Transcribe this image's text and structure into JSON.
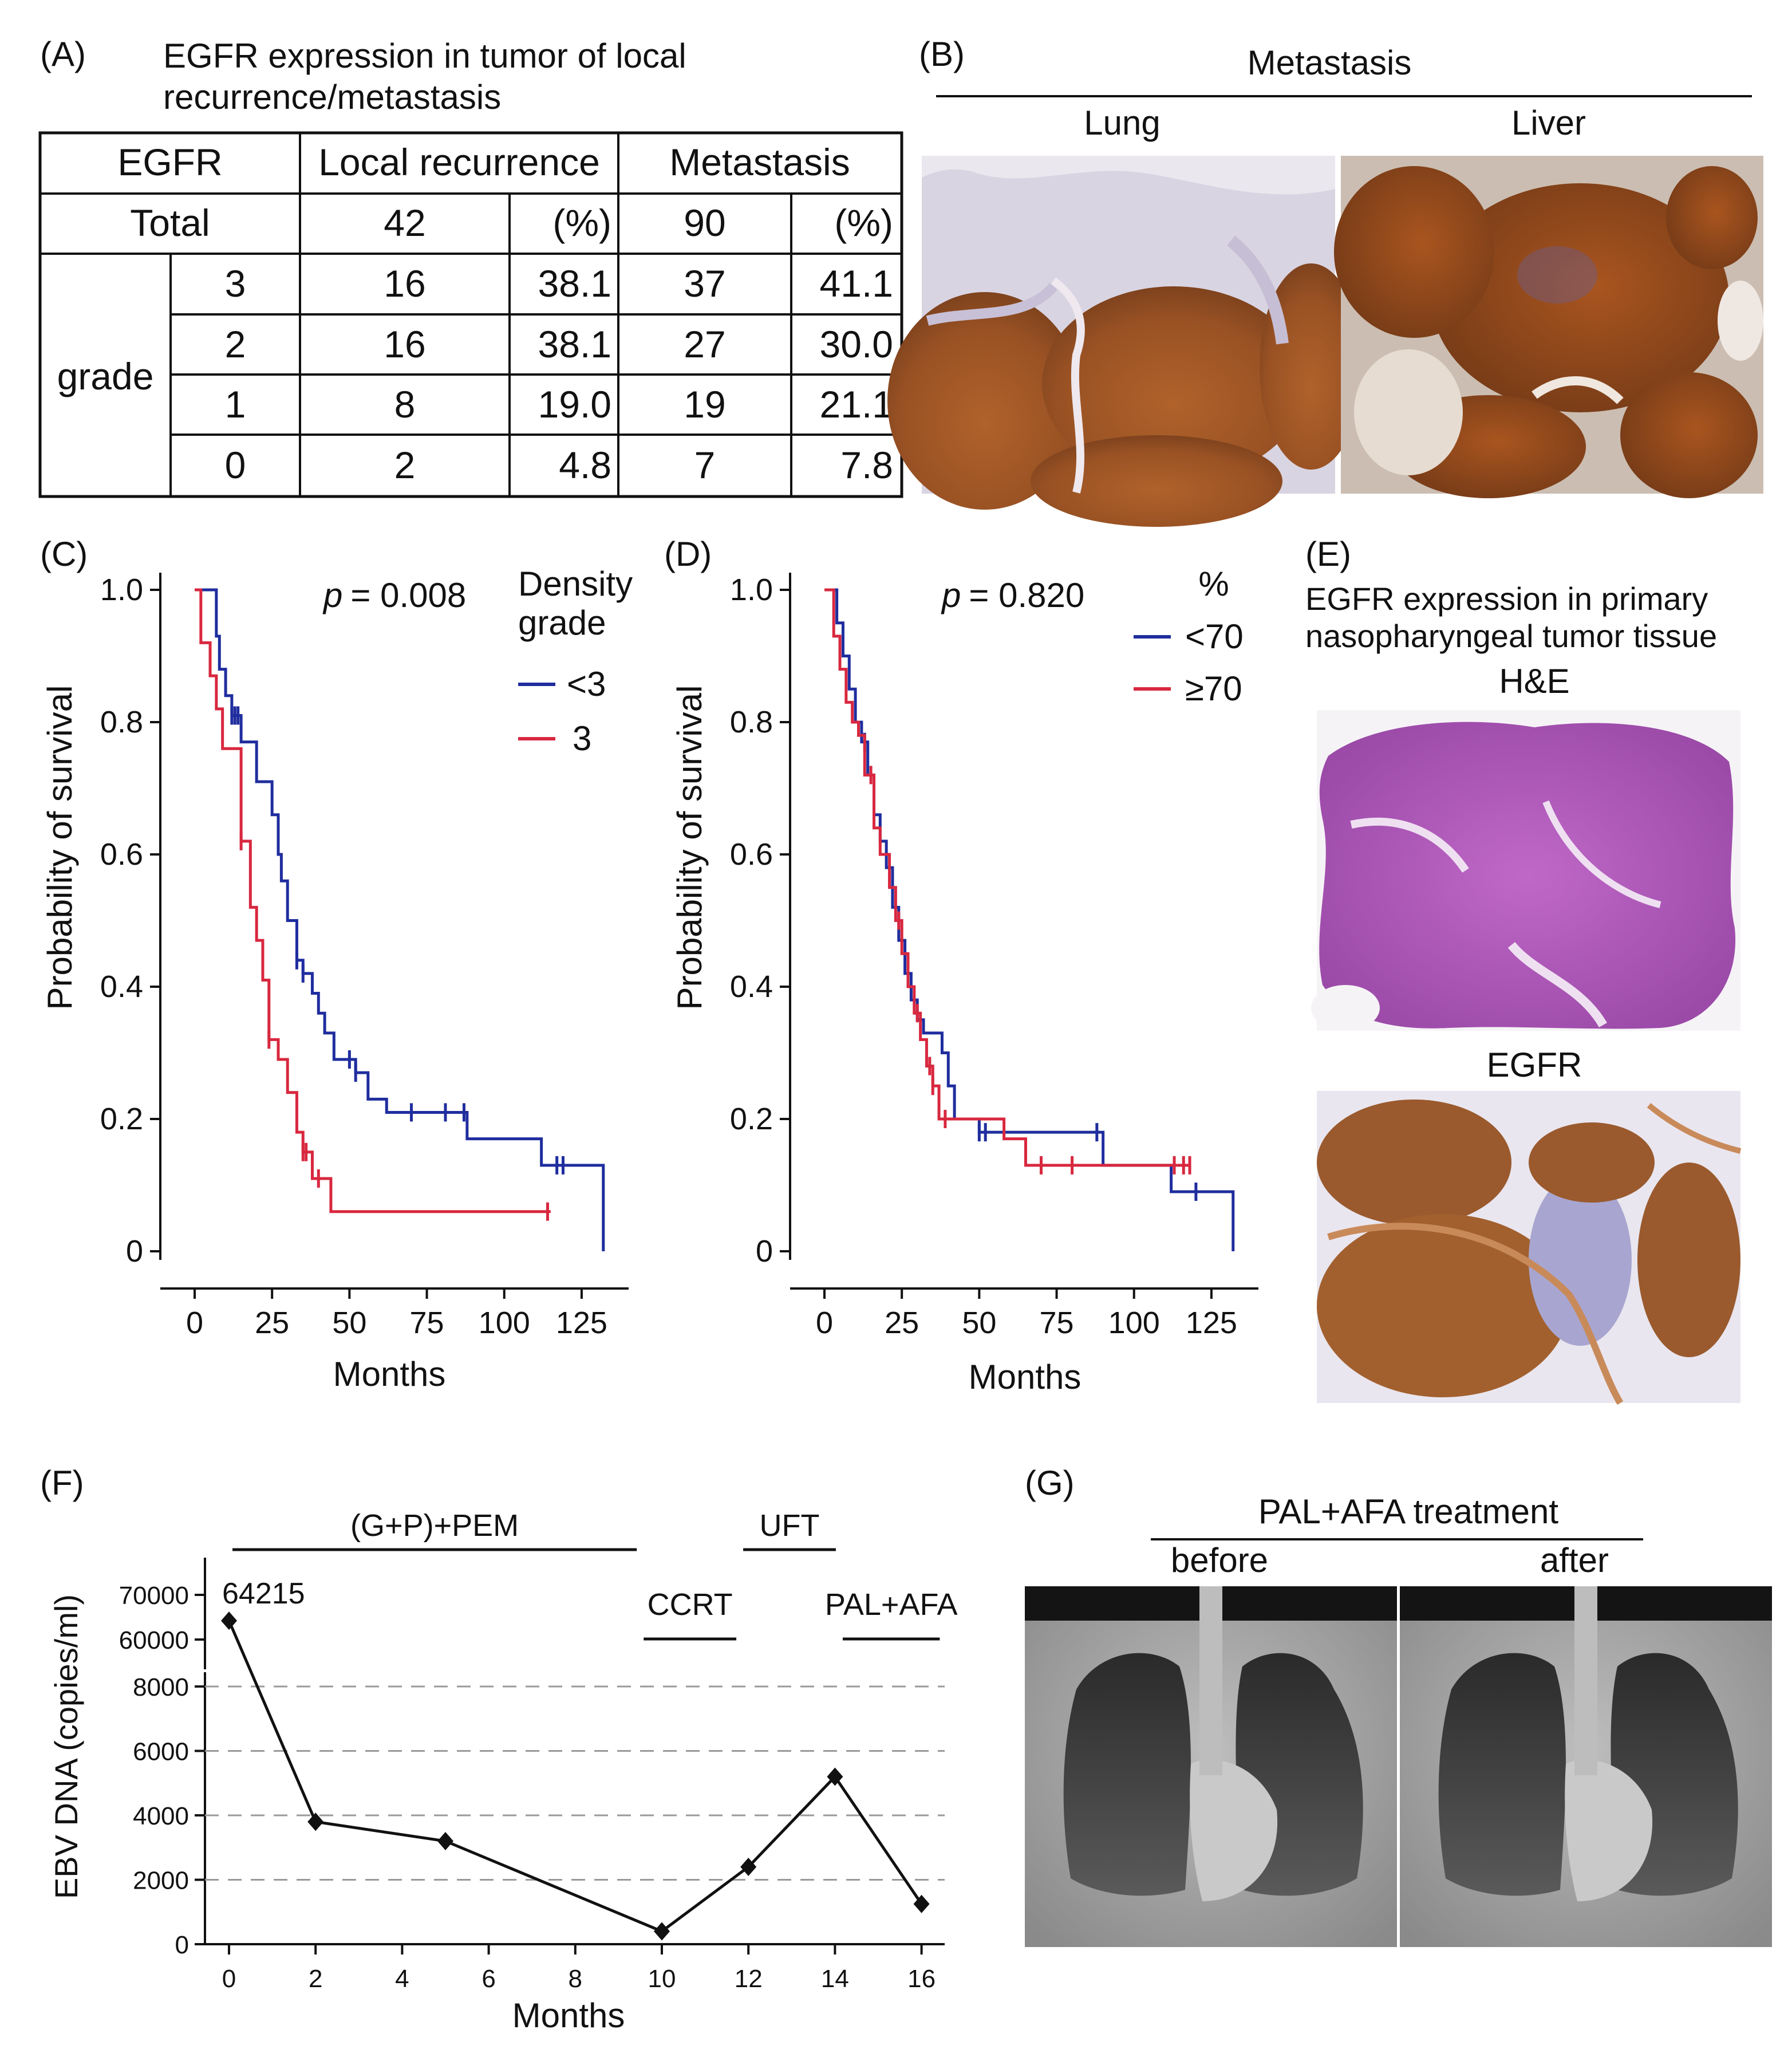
{
  "panels": {
    "a": "(A)",
    "b": "(B)",
    "c": "(C)",
    "d": "(D)",
    "e": "(E)",
    "f": "(F)",
    "g": "(G)"
  },
  "chart_data": [
    {
      "type": "table",
      "title_line1": "EGFR expression in tumor of local",
      "title_line2": "recurrence/metastasis",
      "header": [
        "EGFR",
        "Local recurrence",
        "Metastasis"
      ],
      "total_row": [
        "Total",
        "42",
        "(%)",
        "90",
        "(%)"
      ],
      "row_group_label": "grade",
      "rows": [
        {
          "grade": "3",
          "lr_n": "16",
          "lr_pct": "38.1",
          "met_n": "37",
          "met_pct": "41.1"
        },
        {
          "grade": "2",
          "lr_n": "16",
          "lr_pct": "38.1",
          "met_n": "27",
          "met_pct": "30.0"
        },
        {
          "grade": "1",
          "lr_n": "8",
          "lr_pct": "19.0",
          "met_n": "19",
          "met_pct": "21.1"
        },
        {
          "grade": "0",
          "lr_n": "2",
          "lr_pct": "4.8",
          "met_n": "7",
          "met_pct": "7.8"
        }
      ]
    },
    {
      "type": "line",
      "panel": "C",
      "xlabel": "Months",
      "ylabel": "Probability of survival",
      "xlim": [
        0,
        135
      ],
      "ylim": [
        0,
        1.0
      ],
      "xticks": [
        "0",
        "25",
        "50",
        "75",
        "100",
        "125"
      ],
      "yticks": [
        "0",
        "0.2",
        "0.4",
        "0.6",
        "0.8",
        "1.0"
      ],
      "pvalue": "= 0.008",
      "legend_title_1": "Density",
      "legend_title_2": "grade",
      "series": [
        {
          "name": "<3",
          "color": "#1f2d9e",
          "x": [
            0,
            6,
            7,
            8,
            10,
            12,
            15,
            20,
            25,
            27,
            28,
            30,
            33,
            35,
            38,
            40,
            42,
            45,
            52,
            56,
            62,
            88,
            112,
            117,
            130,
            132
          ],
          "y": [
            1.0,
            1.0,
            0.93,
            0.88,
            0.84,
            0.81,
            0.77,
            0.71,
            0.66,
            0.6,
            0.56,
            0.5,
            0.44,
            0.42,
            0.39,
            0.36,
            0.33,
            0.29,
            0.27,
            0.23,
            0.21,
            0.17,
            0.13,
            0.13,
            0.13,
            0.0
          ],
          "censored_x": [
            12,
            13,
            14,
            33,
            35,
            50,
            52,
            70,
            81,
            87,
            117,
            119
          ]
        },
        {
          "name": "3",
          "color": "#d8283f",
          "x": [
            0,
            2,
            5,
            7,
            9,
            12,
            15,
            18,
            20,
            22,
            24,
            27,
            30,
            33,
            35,
            38,
            42,
            44,
            110,
            115
          ],
          "y": [
            1.0,
            0.92,
            0.87,
            0.82,
            0.76,
            0.76,
            0.62,
            0.52,
            0.47,
            0.41,
            0.32,
            0.29,
            0.24,
            0.18,
            0.15,
            0.11,
            0.11,
            0.06,
            0.06,
            0.06
          ],
          "censored_x": [
            15,
            24,
            35,
            36,
            40,
            114
          ]
        }
      ]
    },
    {
      "type": "line",
      "panel": "D",
      "xlabel": "Months",
      "ylabel": "Probability of survival",
      "xlim": [
        0,
        135
      ],
      "ylim": [
        0,
        1.0
      ],
      "xticks": [
        "0",
        "25",
        "50",
        "75",
        "100",
        "125"
      ],
      "yticks": [
        "0",
        "0.2",
        "0.4",
        "0.6",
        "0.8",
        "1.0"
      ],
      "pvalue": "= 0.820",
      "legend_title": "%",
      "series": [
        {
          "name": "<70",
          "color": "#1f2d9e",
          "x": [
            0,
            2,
            4,
            6,
            8,
            10,
            12,
            14,
            16,
            18,
            20,
            22,
            24,
            26,
            28,
            30,
            32,
            36,
            38,
            40,
            42,
            44,
            50,
            56,
            88,
            90,
            110,
            112,
            120,
            132
          ],
          "y": [
            1.0,
            1.0,
            0.95,
            0.9,
            0.85,
            0.8,
            0.77,
            0.72,
            0.66,
            0.62,
            0.58,
            0.52,
            0.47,
            0.42,
            0.38,
            0.35,
            0.33,
            0.33,
            0.3,
            0.25,
            0.2,
            0.2,
            0.18,
            0.18,
            0.18,
            0.13,
            0.13,
            0.09,
            0.09,
            0.0
          ],
          "censored_x": [
            13,
            50,
            52,
            88,
            120
          ]
        },
        {
          "name": "≥70",
          "color": "#d8283f",
          "x": [
            0,
            3,
            5,
            7,
            9,
            11,
            13,
            16,
            18,
            21,
            23,
            25,
            27,
            29,
            31,
            33,
            35,
            37,
            40,
            45,
            58,
            65,
            115,
            118
          ],
          "y": [
            1.0,
            0.93,
            0.88,
            0.83,
            0.8,
            0.78,
            0.72,
            0.64,
            0.6,
            0.55,
            0.5,
            0.45,
            0.4,
            0.36,
            0.32,
            0.28,
            0.25,
            0.2,
            0.2,
            0.2,
            0.17,
            0.13,
            0.13,
            0.13
          ],
          "censored_x": [
            15,
            24,
            30,
            34,
            35,
            39,
            70,
            80,
            113,
            116,
            118
          ]
        }
      ]
    },
    {
      "type": "line",
      "panel": "F",
      "xlabel": "Months",
      "ylabel": "EBV DNA (copies/ml)",
      "x": [
        0,
        2,
        5,
        10,
        12,
        14,
        16
      ],
      "y": [
        64215,
        3800,
        3200,
        400,
        2400,
        5200,
        1250
      ],
      "xticks": [
        "0",
        "2",
        "4",
        "6",
        "8",
        "10",
        "12",
        "14",
        "16"
      ],
      "yticks_lower": [
        "0",
        "2000",
        "4000",
        "6000",
        "8000"
      ],
      "yticks_upper": [
        "60000",
        "70000"
      ],
      "ylim_lower": [
        0,
        8000
      ],
      "ylim_upper": [
        60000,
        70000
      ],
      "point_label": "64215",
      "color": "#111111",
      "treatments": [
        {
          "label": "(G+P)+PEM",
          "start": 0,
          "end": 9.5
        },
        {
          "label": "CCRT",
          "start": 9.5,
          "end": 11.8
        },
        {
          "label": "UFT",
          "start": 11.8,
          "end": 14.1
        },
        {
          "label": "PAL+AFA",
          "start": 14.1,
          "end": 16.5
        }
      ]
    }
  ],
  "panel_b": {
    "title": "Metastasis",
    "left": "Lung",
    "right": "Liver"
  },
  "panel_e": {
    "line1": "EGFR expression in primary",
    "line2": "nasopharyngeal tumor tissue",
    "he": "H&E",
    "egfr": "EGFR"
  },
  "panel_g": {
    "title": "PAL+AFA treatment",
    "before": "before",
    "after": "after"
  },
  "italic_p": "p"
}
